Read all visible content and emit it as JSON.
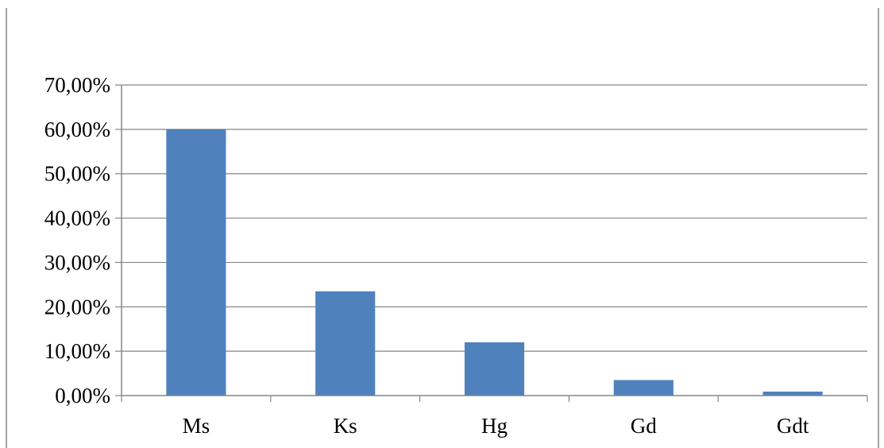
{
  "chart_data": {
    "type": "bar",
    "categories": [
      "Ms",
      "Ks",
      "Hg",
      "Gd",
      "Gdt"
    ],
    "values": [
      60.0,
      23.5,
      12.0,
      3.5,
      0.9
    ],
    "value_format": "percent",
    "ylim": [
      0,
      70
    ],
    "yticks": [
      0,
      10,
      20,
      30,
      40,
      50,
      60,
      70
    ],
    "ytick_labels": [
      "0,00%",
      "10,00%",
      "20,00%",
      "30,00%",
      "40,00%",
      "50,00%",
      "60,00%",
      "70,00%"
    ],
    "title": "",
    "xlabel": "",
    "ylabel": "",
    "grid": true,
    "legend": "none",
    "bar_color": "#4f81bd",
    "grid_color": "#868686"
  }
}
